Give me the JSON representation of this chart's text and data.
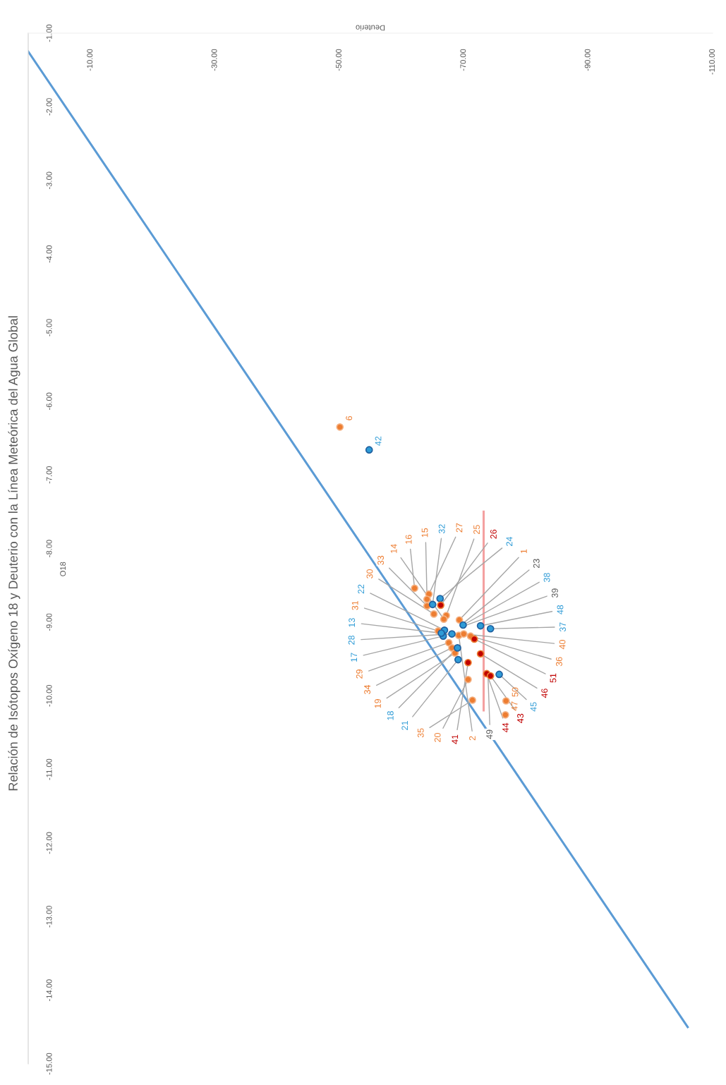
{
  "chart_data": {
    "type": "scatter",
    "title": "Relación de Isótopos Oxígeno 18 y Deuterio con la Línea Meteórica del Agua Global",
    "xlabel": "Deuterio",
    "ylabel": "O18",
    "xlim": [
      0,
      -110
    ],
    "xticks": [
      {
        "value": -10,
        "label": "-10.00"
      },
      {
        "value": -30,
        "label": "-30.00"
      },
      {
        "value": -50,
        "label": "-50.00"
      },
      {
        "value": -70,
        "label": "-70.00"
      },
      {
        "value": -90,
        "label": "-90.00"
      },
      {
        "value": -110,
        "label": "-110.00"
      }
    ],
    "ylim": [
      -15,
      -1
    ],
    "yticks": [
      {
        "value": -1,
        "label": "-1.00"
      },
      {
        "value": -2,
        "label": "-2.00"
      },
      {
        "value": -3,
        "label": "-3.00"
      },
      {
        "value": -4,
        "label": "-4.00"
      },
      {
        "value": -5,
        "label": "-5.00"
      },
      {
        "value": -6,
        "label": "-6.00"
      },
      {
        "value": -7,
        "label": "-7.00"
      },
      {
        "value": -8,
        "label": "-8.00"
      },
      {
        "value": -9,
        "label": "-9.00"
      },
      {
        "value": -10,
        "label": "-10.00"
      },
      {
        "value": -11,
        "label": "-11.00"
      },
      {
        "value": -12,
        "label": "-12.00"
      },
      {
        "value": -13,
        "label": "-13.00"
      },
      {
        "value": -14,
        "label": "-14.00"
      },
      {
        "value": -15,
        "label": "-15.00"
      }
    ],
    "marker": "circle",
    "series": [
      {
        "type": "line",
        "marker": "none",
        "color": "#5b9bd5",
        "x": [
          0,
          -106
        ],
        "values": [
          -1.25,
          -14.5
        ]
      },
      {
        "type": "line",
        "marker": "none",
        "color": "#f4a0a0",
        "x": [
          -73.2,
          -73.2
        ],
        "values": [
          -7.5,
          -10.2
        ]
      },
      {
        "color": "#ed7d31",
        "x": [
          -62.1,
          -64.4,
          -64.1,
          -64.1,
          -65.2,
          -67.2,
          -66.8,
          -69.3,
          -65.9,
          -69.2,
          -70.0,
          -71.1,
          -67.6,
          -68.1,
          -68.6,
          -70.7,
          -71.4,
          -76.8,
          -76.7,
          -50.1
        ],
        "values": [
          -8.54,
          -8.62,
          -8.69,
          -8.78,
          -8.89,
          -8.91,
          -8.96,
          -8.97,
          -9.12,
          -9.18,
          -9.16,
          -9.19,
          -9.28,
          -9.35,
          -9.42,
          -9.78,
          -10.06,
          -10.07,
          -10.26,
          -6.35
        ]
      },
      {
        "color": "#2e9bd6",
        "x": [
          -65.0,
          -66.2,
          -69.9,
          -72.7,
          -74.3,
          -66.9,
          -66.7,
          -68.1,
          -69.0,
          -69.1,
          -75.7,
          -54.8,
          null,
          -66.4,
          null
        ],
        "values": [
          -8.76,
          -8.68,
          -9.04,
          -9.05,
          -9.09,
          -9.11,
          -9.19,
          -9.16,
          -9.35,
          -9.51,
          -9.71,
          -6.66,
          null,
          -9.15,
          null
        ]
      },
      {
        "color": "#c00000",
        "x": [
          -66.3,
          -71.7,
          -72.7,
          -70.7,
          -73.7,
          -74.3,
          null
        ],
        "values": [
          -8.77,
          -9.23,
          -9.43,
          -9.55,
          -9.7,
          -9.73,
          null
        ]
      }
    ],
    "annotations": [
      {
        "text": "16",
        "x": -62.1,
        "y": -8.54
      },
      {
        "text": "27",
        "x": -64.4,
        "y": -8.62
      },
      {
        "text": "15",
        "x": -64.1,
        "y": -8.69
      },
      {
        "text": "33",
        "x": -64.1,
        "y": -8.78
      },
      {
        "text": "30",
        "x": -65.2,
        "y": -8.89
      },
      {
        "text": "25",
        "x": -67.2,
        "y": -8.91
      },
      {
        "text": "14",
        "x": -66.8,
        "y": -8.96
      },
      {
        "text": "1",
        "x": -69.3,
        "y": -8.97
      },
      {
        "text": "31",
        "x": -65.9,
        "y": -9.12
      },
      {
        "text": "2",
        "x": -69.2,
        "y": -9.18
      },
      {
        "text": "40",
        "x": -70.0,
        "y": -9.16
      },
      {
        "text": "36",
        "x": -71.1,
        "y": -9.19
      },
      {
        "text": "29",
        "x": -67.6,
        "y": -9.28
      },
      {
        "text": "34",
        "x": -68.1,
        "y": -9.35
      },
      {
        "text": "19",
        "x": -68.6,
        "y": -9.42
      },
      {
        "text": "20",
        "x": -70.7,
        "y": -9.78
      },
      {
        "text": "35",
        "x": -71.4,
        "y": -10.06
      },
      {
        "text": "50",
        "x": -76.8,
        "y": -10.07
      },
      {
        "text": "47",
        "x": -76.7,
        "y": -10.26
      },
      {
        "text": "6",
        "x": -50.1,
        "y": -6.35
      },
      {
        "text": "32",
        "x": -65.0,
        "y": -8.76
      },
      {
        "text": "24",
        "x": -66.2,
        "y": -8.68
      },
      {
        "text": "38",
        "x": -69.9,
        "y": -9.04
      },
      {
        "text": "48",
        "x": -72.7,
        "y": -9.05
      },
      {
        "text": "37",
        "x": -74.3,
        "y": -9.09
      },
      {
        "text": "22",
        "x": -66.9,
        "y": -9.11
      },
      {
        "text": "17",
        "x": -66.7,
        "y": -9.19
      },
      {
        "text": "28",
        "x": -68.1,
        "y": -9.16
      },
      {
        "text": "18",
        "x": -69.0,
        "y": -9.35
      },
      {
        "text": "21",
        "x": -69.1,
        "y": -9.51
      },
      {
        "text": "45",
        "x": -75.7,
        "y": -9.71
      },
      {
        "text": "42",
        "x": -54.8,
        "y": -6.66
      },
      {
        "text": "23",
        "x": -69.7,
        "y": -9.03
      },
      {
        "text": "13",
        "x": -66.4,
        "y": -9.15
      },
      {
        "text": "49",
        "x": -73.9,
        "y": -9.73
      },
      {
        "text": "26",
        "x": -66.3,
        "y": -8.77
      },
      {
        "text": "51",
        "x": -71.7,
        "y": -9.23
      },
      {
        "text": "46",
        "x": -72.7,
        "y": -9.43
      },
      {
        "text": "41",
        "x": -70.7,
        "y": -9.55
      },
      {
        "text": "44",
        "x": -73.7,
        "y": -9.7
      },
      {
        "text": "43",
        "x": -74.3,
        "y": -9.73
      },
      {
        "text": "39",
        "x": -69.8,
        "y": -9.06
      }
    ]
  }
}
